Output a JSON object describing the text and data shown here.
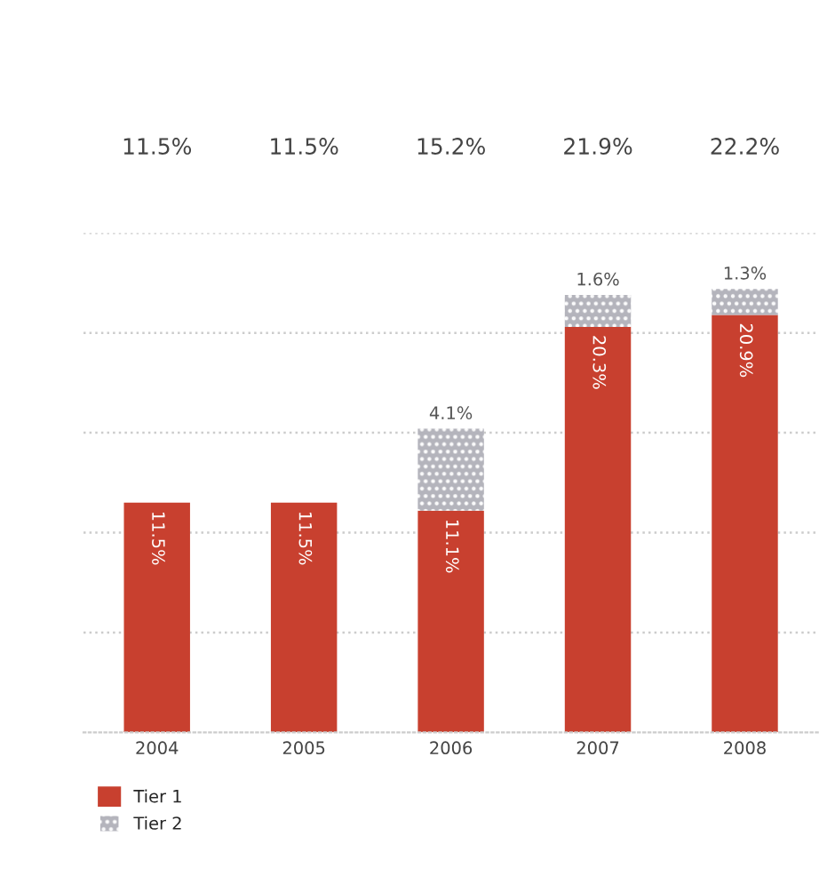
{
  "chart_data": {
    "type": "bar",
    "stacked": true,
    "categories": [
      "2004",
      "2005",
      "2006",
      "2007",
      "2008"
    ],
    "series": [
      {
        "name": "Tier 1",
        "color": "#c8402f",
        "values": [
          11.5,
          11.5,
          11.1,
          20.3,
          20.9
        ],
        "value_labels": [
          "11.5%",
          "11.5%",
          "11.1%",
          "20.3%",
          "20.9%"
        ]
      },
      {
        "name": "Tier 2",
        "color": "#b4b4bc",
        "values": [
          0,
          0,
          4.1,
          1.6,
          1.3
        ],
        "value_labels": [
          null,
          null,
          "4.1%",
          "1.6%",
          "1.3%"
        ]
      }
    ],
    "annotations": [
      "11.5%",
      "11.5%",
      "15.2%",
      "21.9%",
      "22.2%"
    ],
    "ylim": [
      0,
      25
    ],
    "yticks": [
      {
        "value": 5,
        "label": null
      },
      {
        "value": 10,
        "label": null
      },
      {
        "value": 15,
        "label": null
      },
      {
        "value": 20,
        "label": null
      },
      {
        "value": 25,
        "label": null
      }
    ],
    "grid": "y",
    "tick_labels": "x",
    "legend": "bottom left"
  }
}
